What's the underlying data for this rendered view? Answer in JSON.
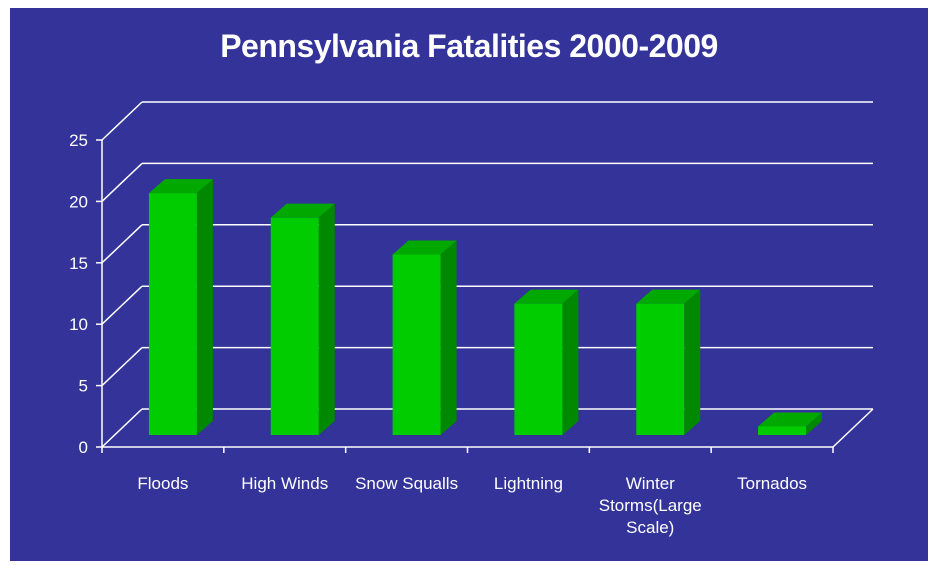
{
  "chart_data": {
    "type": "bar",
    "title": "Pennsylvania Fatalities 2000-2009",
    "xlabel": "",
    "ylabel": "",
    "categories": [
      "Floods",
      "High Winds",
      "Snow Squalls",
      "Lightning",
      "Winter Storms(Large Scale)",
      "Tornados"
    ],
    "category_lines": [
      [
        "Floods"
      ],
      [
        "High Winds"
      ],
      [
        "Snow Squalls"
      ],
      [
        "Lightning"
      ],
      [
        "Winter",
        "Storms(Large",
        "Scale)"
      ],
      [
        "Tornados"
      ]
    ],
    "values": [
      21,
      19,
      16,
      12,
      12,
      2
    ],
    "ylim": [
      0,
      25
    ],
    "yticks": [
      "0",
      "5",
      "10",
      "15",
      "20",
      "25"
    ],
    "grid": true,
    "legend": "none",
    "style": "3d",
    "colors": {
      "background": "#333399",
      "bar_front": "#00cc00",
      "bar_side": "#008800",
      "bar_top": "#00a800",
      "grid": "#ffffff",
      "text": "#ffffff"
    }
  }
}
